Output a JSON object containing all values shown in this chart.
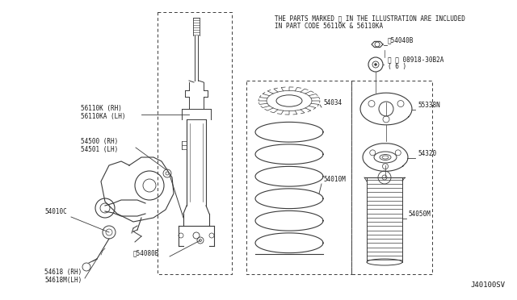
{
  "bg_color": "#ffffff",
  "line_color": "#3a3a3a",
  "text_color": "#1a1a1a",
  "note_text_line1": "THE PARTS MARKED ※ IN THE ILLUSTRATION ARE INCLUDED",
  "note_text_line2": "IN PART CODE 56110K & 56110KA",
  "catalog_number": "J40100SV",
  "label_font": 5.5,
  "dash_lw": 0.7
}
